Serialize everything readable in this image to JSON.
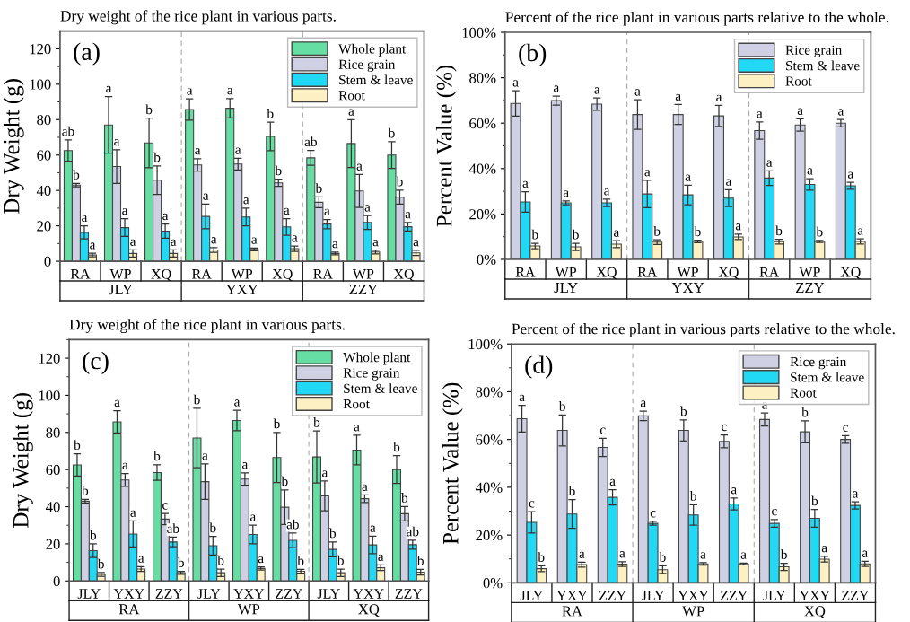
{
  "chart_data": [
    {
      "type": "bar",
      "title": "Dry weight of the rice plant in various parts.",
      "ylabel": "Dry Weight (g)",
      "categories": [
        "RA",
        "WP",
        "XQ",
        "RA",
        "WP",
        "XQ",
        "RA",
        "WP",
        "XQ"
      ],
      "series": [
        {
          "name": "Whole plant",
          "color": "#66dda2",
          "values": [
            62.5,
            77,
            66.8,
            85.7,
            86.4,
            70.5,
            58.4,
            66.5,
            60
          ],
          "errors": [
            6,
            16,
            14,
            6,
            5.5,
            8,
            4.2,
            13.5,
            7.5
          ],
          "value_labels": [
            "ab",
            "a",
            "b",
            "a",
            "a",
            "b",
            "ab",
            "a",
            "b"
          ]
        },
        {
          "name": "Rice grain",
          "color": "#d0d0e4",
          "values": [
            43,
            53.5,
            45.8,
            54.4,
            54.9,
            44.3,
            33.3,
            39.7,
            36.2
          ],
          "errors": [
            1,
            9.5,
            8,
            3.5,
            3.3,
            2,
            3,
            9.3,
            3.9
          ],
          "value_labels": [
            "b",
            "a",
            "b",
            "a",
            "a",
            "b",
            "b",
            "a",
            "b"
          ]
        },
        {
          "name": "Stem & leave",
          "color": "#22d9f5",
          "values": [
            16.3,
            19,
            17,
            25.3,
            25,
            19.4,
            21,
            21.9,
            19.5
          ],
          "errors": [
            3.7,
            5,
            4,
            7,
            5,
            4.7,
            2.6,
            3.9,
            2.4
          ],
          "value_labels": [
            "a",
            "a",
            "a",
            "a",
            "a",
            "a",
            "a",
            "a",
            "a"
          ]
        },
        {
          "name": "Root",
          "color": "#fdf0c2",
          "values": [
            3.5,
            4.4,
            4.4,
            6.4,
            6.7,
            7.1,
            4.4,
            5.2,
            4.7
          ],
          "errors": [
            1,
            2,
            2,
            1.3,
            0.8,
            1.5,
            0.8,
            1,
            1.5
          ],
          "value_labels": [
            "a",
            "a",
            "a",
            "a",
            "a",
            "a",
            "a",
            "a",
            "a"
          ]
        }
      ],
      "ylim": [
        0,
        130
      ],
      "yticks": [
        0,
        20,
        40,
        60,
        80,
        100,
        120
      ],
      "legend": "top right",
      "grid": false,
      "annotations": [
        "(a)",
        "JLY",
        "YXY",
        "ZZY"
      ]
    },
    {
      "type": "bar",
      "title": "Percent of the rice plant in various parts relative to the whole.",
      "ylabel": "Percent Value (%)",
      "categories": [
        "RA",
        "WP",
        "XQ",
        "RA",
        "WP",
        "XQ",
        "RA",
        "WP",
        "XQ"
      ],
      "series": [
        {
          "name": "Rice grain",
          "color": "#d0d0e4",
          "values": [
            68.7,
            69.9,
            68.4,
            63.8,
            63.8,
            63.2,
            56.7,
            59.2,
            60
          ],
          "errors": [
            5.6,
            2,
            2.7,
            6.5,
            4.4,
            4.6,
            3.8,
            2.7,
            1.6
          ],
          "value_labels": [
            "a",
            "a",
            "a",
            "a",
            "a",
            "a",
            "a",
            "a",
            "a"
          ]
        },
        {
          "name": "Stem & leave",
          "color": "#22d9f5",
          "values": [
            25.3,
            24.9,
            24.9,
            28.8,
            28.4,
            27,
            35.8,
            33,
            32.4
          ],
          "errors": [
            4.5,
            0.8,
            1.6,
            6,
            4.3,
            3.7,
            3.2,
            2.5,
            1.5
          ],
          "value_labels": [
            "a",
            "a",
            "a",
            "a",
            "a",
            "a",
            "a",
            "a",
            "a"
          ]
        },
        {
          "name": "Root",
          "color": "#fdf0c2",
          "values": [
            5.9,
            5.5,
            6.7,
            7.6,
            7.9,
            9.9,
            7.8,
            7.9,
            7.9
          ],
          "errors": [
            1.2,
            1.6,
            1.5,
            1,
            0.5,
            1.2,
            1,
            0.4,
            1.1
          ],
          "value_labels": [
            "b",
            "b",
            "a",
            "b",
            "b",
            "a",
            "b",
            "b",
            "a"
          ]
        }
      ],
      "ylim": [
        0,
        100
      ],
      "yticks": [
        {
          "value": 0,
          "label": "0%"
        },
        {
          "value": 20,
          "label": "20%"
        },
        {
          "value": 40,
          "label": "40%"
        },
        {
          "value": 60,
          "label": "60%"
        },
        {
          "value": 80,
          "label": "80%"
        },
        {
          "value": 100,
          "label": "100%"
        }
      ],
      "legend": "top right",
      "grid": false,
      "annotations": [
        "(b)",
        "JLY",
        "YXY",
        "ZZY"
      ]
    },
    {
      "type": "bar",
      "title": "Dry weight of the rice plant in various parts.",
      "ylabel": "Dry Weight (g)",
      "categories": [
        "JLY",
        "YXY",
        "ZZY",
        "JLY",
        "YXY",
        "ZZY",
        "JLY",
        "YXY",
        "ZZY"
      ],
      "series": [
        {
          "name": "Whole plant",
          "color": "#66dda2",
          "values": [
            62.5,
            85.7,
            58.4,
            77,
            86.4,
            66.5,
            66.8,
            70.5,
            60
          ],
          "errors": [
            6,
            6,
            4.2,
            16,
            5.5,
            13.5,
            14,
            8,
            7.5
          ],
          "value_labels": [
            "b",
            "a",
            "b",
            "b",
            "a",
            "b",
            "b",
            "a",
            "b"
          ]
        },
        {
          "name": "Rice grain",
          "color": "#d0d0e4",
          "values": [
            43,
            54.4,
            33.3,
            53.5,
            54.9,
            39.7,
            45.8,
            44.3,
            36.2
          ],
          "errors": [
            1,
            3.5,
            3,
            9.5,
            3.3,
            9.3,
            8,
            2,
            3.9
          ],
          "value_labels": [
            "b",
            "a",
            "c",
            "a",
            "a",
            "b",
            "a",
            "a",
            "b"
          ]
        },
        {
          "name": "Stem & leave",
          "color": "#22d9f5",
          "values": [
            16.3,
            25.3,
            21,
            19,
            25,
            21.9,
            17,
            19.4,
            19.5
          ],
          "errors": [
            3.7,
            7,
            2.6,
            5,
            5,
            3.9,
            4,
            4.7,
            2.4
          ],
          "value_labels": [
            "b",
            "a",
            "ab",
            "b",
            "a",
            "ab",
            "b",
            "a",
            "ab"
          ]
        },
        {
          "name": "Root",
          "color": "#fdf0c2",
          "values": [
            3.5,
            6.4,
            4.4,
            4.4,
            6.7,
            5.2,
            4.4,
            7.1,
            4.7
          ],
          "errors": [
            1,
            1.3,
            0.8,
            2,
            0.8,
            1,
            2,
            1.5,
            1.5
          ],
          "value_labels": [
            "b",
            "a",
            "b",
            "b",
            "a",
            "b",
            "b",
            "a",
            "b"
          ]
        }
      ],
      "ylim": [
        0,
        130
      ],
      "yticks": [
        0,
        20,
        40,
        60,
        80,
        100,
        120
      ],
      "legend": "top right",
      "grid": false,
      "annotations": [
        "(c)",
        "RA",
        "WP",
        "XQ"
      ]
    },
    {
      "type": "bar",
      "title": "Percent of the rice plant in various parts relative to the whole.",
      "ylabel": "Percent Value (%)",
      "categories": [
        "JLY",
        "YXY",
        "ZZY",
        "JLY",
        "YXY",
        "ZZY",
        "JLY",
        "YXY",
        "ZZY"
      ],
      "series": [
        {
          "name": "Rice grain",
          "color": "#d0d0e4",
          "values": [
            68.7,
            63.8,
            56.7,
            69.9,
            63.8,
            59.2,
            68.4,
            63.2,
            60
          ],
          "errors": [
            5.6,
            6.5,
            3.8,
            2,
            4.4,
            2.7,
            2.7,
            4.6,
            1.6
          ],
          "value_labels": [
            "a",
            "b",
            "c",
            "a",
            "b",
            "c",
            "a",
            "b",
            "c"
          ]
        },
        {
          "name": "Stem & leave",
          "color": "#22d9f5",
          "values": [
            25.3,
            28.8,
            35.8,
            24.9,
            28.4,
            33,
            24.9,
            27,
            32.4
          ],
          "errors": [
            4.5,
            6,
            3.2,
            0.8,
            4.3,
            2.5,
            1.6,
            3.7,
            1.5
          ],
          "value_labels": [
            "c",
            "b",
            "a",
            "c",
            "b",
            "a",
            "c",
            "b",
            "a"
          ]
        },
        {
          "name": "Root",
          "color": "#fdf0c2",
          "values": [
            5.9,
            7.6,
            7.8,
            5.5,
            7.9,
            7.9,
            6.7,
            9.9,
            7.9
          ],
          "errors": [
            1.2,
            1,
            1,
            1.6,
            0.5,
            0.4,
            1.5,
            1.2,
            1.1
          ],
          "value_labels": [
            "b",
            "a",
            "a",
            "b",
            "a",
            "a",
            "b",
            "a",
            "a"
          ]
        }
      ],
      "ylim": [
        0,
        100
      ],
      "yticks": [
        {
          "value": 0,
          "label": "0%"
        },
        {
          "value": 20,
          "label": "20%"
        },
        {
          "value": 40,
          "label": "40%"
        },
        {
          "value": 60,
          "label": "60%"
        },
        {
          "value": 80,
          "label": "80%"
        },
        {
          "value": 100,
          "label": "100%"
        }
      ],
      "legend": "top right",
      "grid": false,
      "annotations": [
        "(d)",
        "RA",
        "WP",
        "XQ"
      ]
    }
  ]
}
